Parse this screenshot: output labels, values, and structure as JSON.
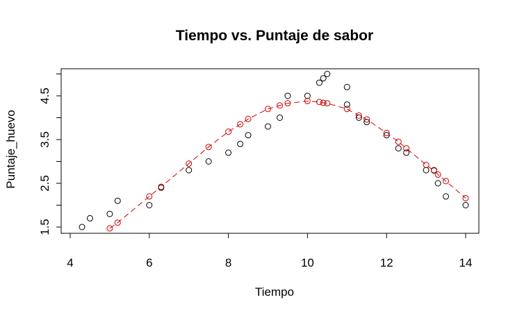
{
  "chart_data": {
    "type": "scatter",
    "title": "Tiempo vs. Puntaje de sabor",
    "xlabel": "Tiempo",
    "ylabel": "Puntaje_huevo",
    "xlim": [
      4,
      14
    ],
    "ylim": [
      1.5,
      5
    ],
    "xticks": [
      "4",
      "6",
      "8",
      "10",
      "12",
      "14"
    ],
    "yticks": [
      "1.5",
      "2.5",
      "3.5",
      "4.5"
    ],
    "grid": false,
    "colors": {
      "observed": "#000000",
      "fitted": "#cc0000"
    },
    "series": [
      {
        "style": "open-circle",
        "x": [
          4.3,
          4.5,
          5.0,
          5.2,
          6.0,
          6.3,
          7.0,
          7.5,
          8.0,
          8.3,
          8.5,
          9.0,
          9.3,
          9.5,
          10.0,
          10.3,
          10.4,
          10.5,
          11.0,
          11.0,
          11.3,
          11.5,
          12.0,
          12.3,
          12.5,
          13.0,
          13.2,
          13.3,
          13.5,
          14.0
        ],
        "y": [
          1.5,
          1.7,
          1.8,
          2.1,
          2.0,
          2.4,
          2.8,
          3.0,
          3.2,
          3.4,
          3.6,
          3.8,
          4.0,
          4.5,
          4.5,
          4.8,
          4.9,
          5.0,
          4.7,
          4.3,
          4.0,
          3.9,
          3.6,
          3.3,
          3.2,
          2.8,
          2.8,
          2.5,
          2.2,
          2.0
        ]
      },
      {
        "style": "open-circle-dashed-line",
        "x": [
          5.0,
          5.2,
          6.0,
          6.3,
          7.0,
          7.5,
          8.0,
          8.3,
          8.5,
          9.0,
          9.3,
          9.5,
          10.0,
          10.3,
          10.4,
          10.5,
          11.0,
          11.3,
          11.5,
          12.0,
          12.3,
          12.5,
          13.0,
          13.2,
          13.3,
          13.5,
          14.0
        ],
        "y": [
          1.47,
          1.6,
          2.2,
          2.42,
          2.95,
          3.33,
          3.68,
          3.85,
          3.97,
          4.2,
          4.28,
          4.33,
          4.38,
          4.36,
          4.34,
          4.33,
          4.2,
          4.05,
          3.96,
          3.65,
          3.45,
          3.3,
          2.92,
          2.79,
          2.7,
          2.55,
          2.16
        ]
      }
    ]
  }
}
